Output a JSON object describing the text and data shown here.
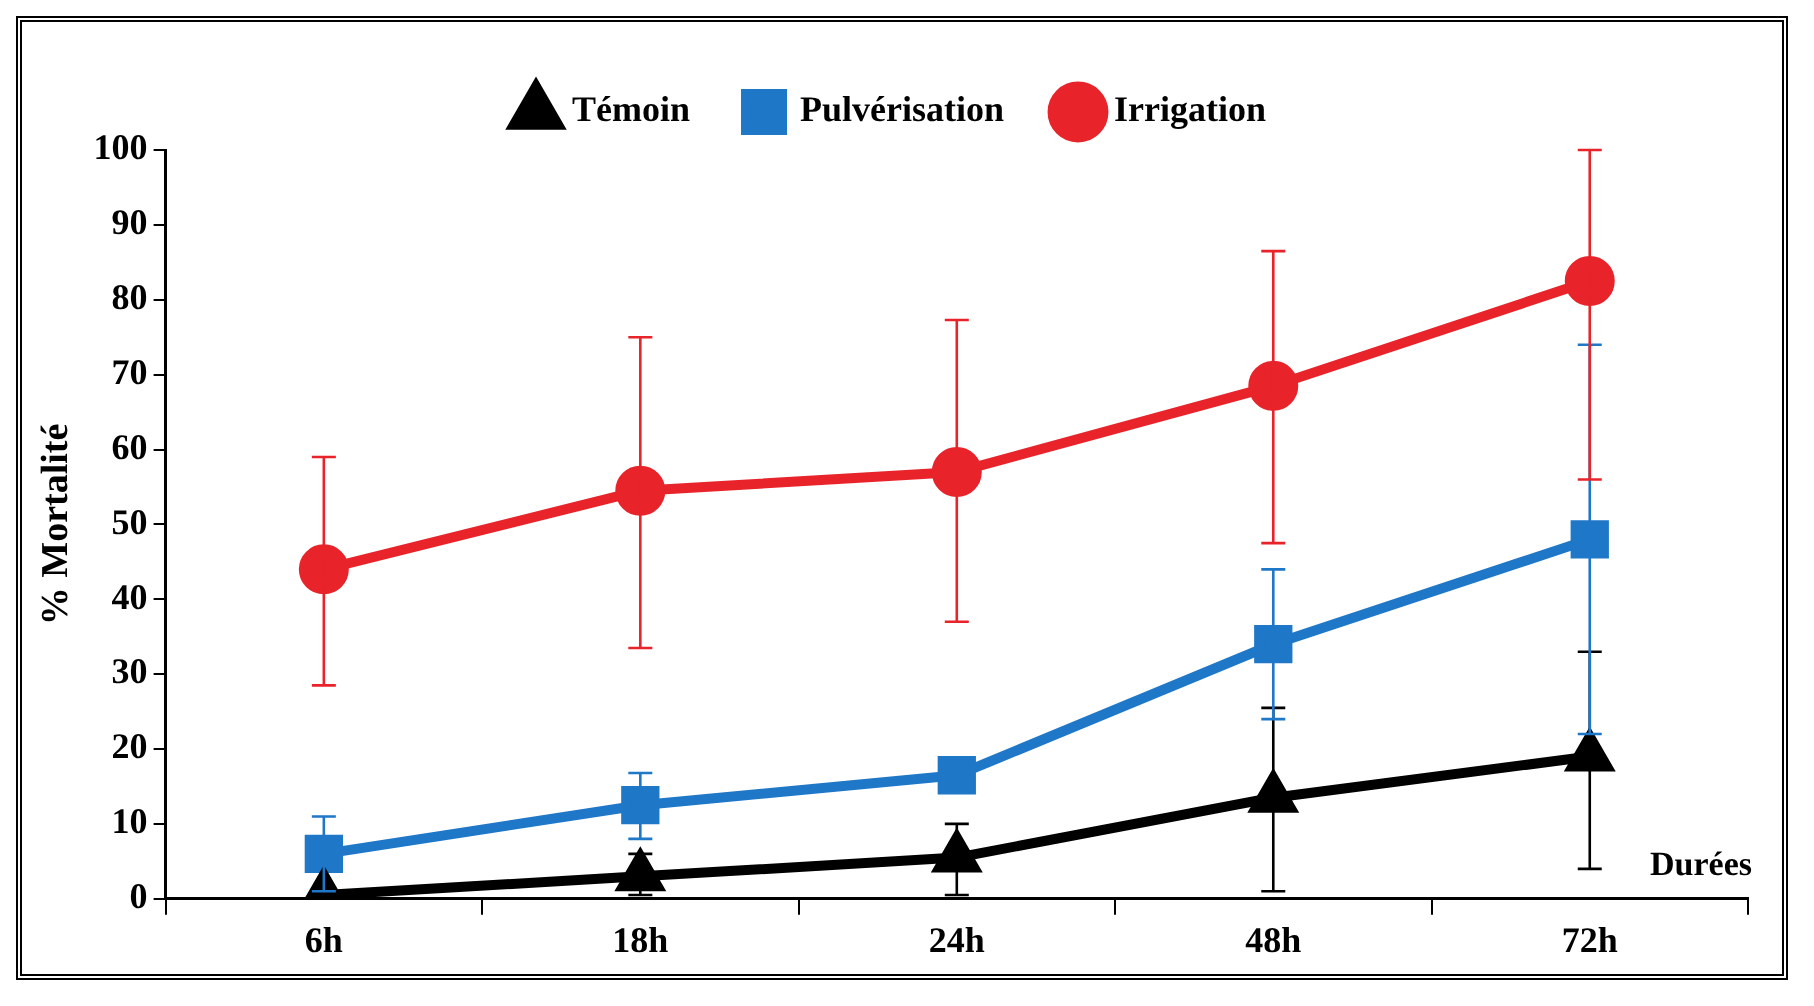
{
  "chart_data": {
    "type": "line",
    "xlabel": "Durées",
    "ylabel": "% Mortalité",
    "categories": [
      "6h",
      "18h",
      "24h",
      "48h",
      "72h"
    ],
    "series": [
      {
        "name": "Témoin",
        "color": "#000000",
        "marker": "triangle",
        "values": [
          0.5,
          3,
          5.5,
          13.5,
          19
        ],
        "errors": [
          [
            0,
            1
          ],
          [
            0.5,
            6
          ],
          [
            0.5,
            10
          ],
          [
            1,
            25.5
          ],
          [
            4,
            33
          ]
        ]
      },
      {
        "name": "Pulvérisation",
        "color": "#1f77c8",
        "marker": "square",
        "values": [
          6,
          12.5,
          16.5,
          34,
          48
        ],
        "errors": [
          [
            1,
            11
          ],
          [
            8,
            16.8
          ],
          null,
          [
            24,
            44
          ],
          [
            22,
            74
          ]
        ]
      },
      {
        "name": "Irrigation",
        "color": "#e8232a",
        "marker": "circle",
        "values": [
          44,
          54.5,
          57,
          68.5,
          82.5
        ],
        "errors": [
          [
            28.5,
            59
          ],
          [
            33.5,
            75
          ],
          [
            37,
            77.3
          ],
          [
            47.5,
            86.5
          ],
          [
            56,
            100
          ]
        ]
      }
    ],
    "ylim": [
      0,
      100
    ],
    "yticks": [
      0,
      10,
      20,
      30,
      40,
      50,
      60,
      70,
      80,
      90,
      100
    ],
    "grid": false,
    "legend": "top",
    "line_style": "solid"
  }
}
